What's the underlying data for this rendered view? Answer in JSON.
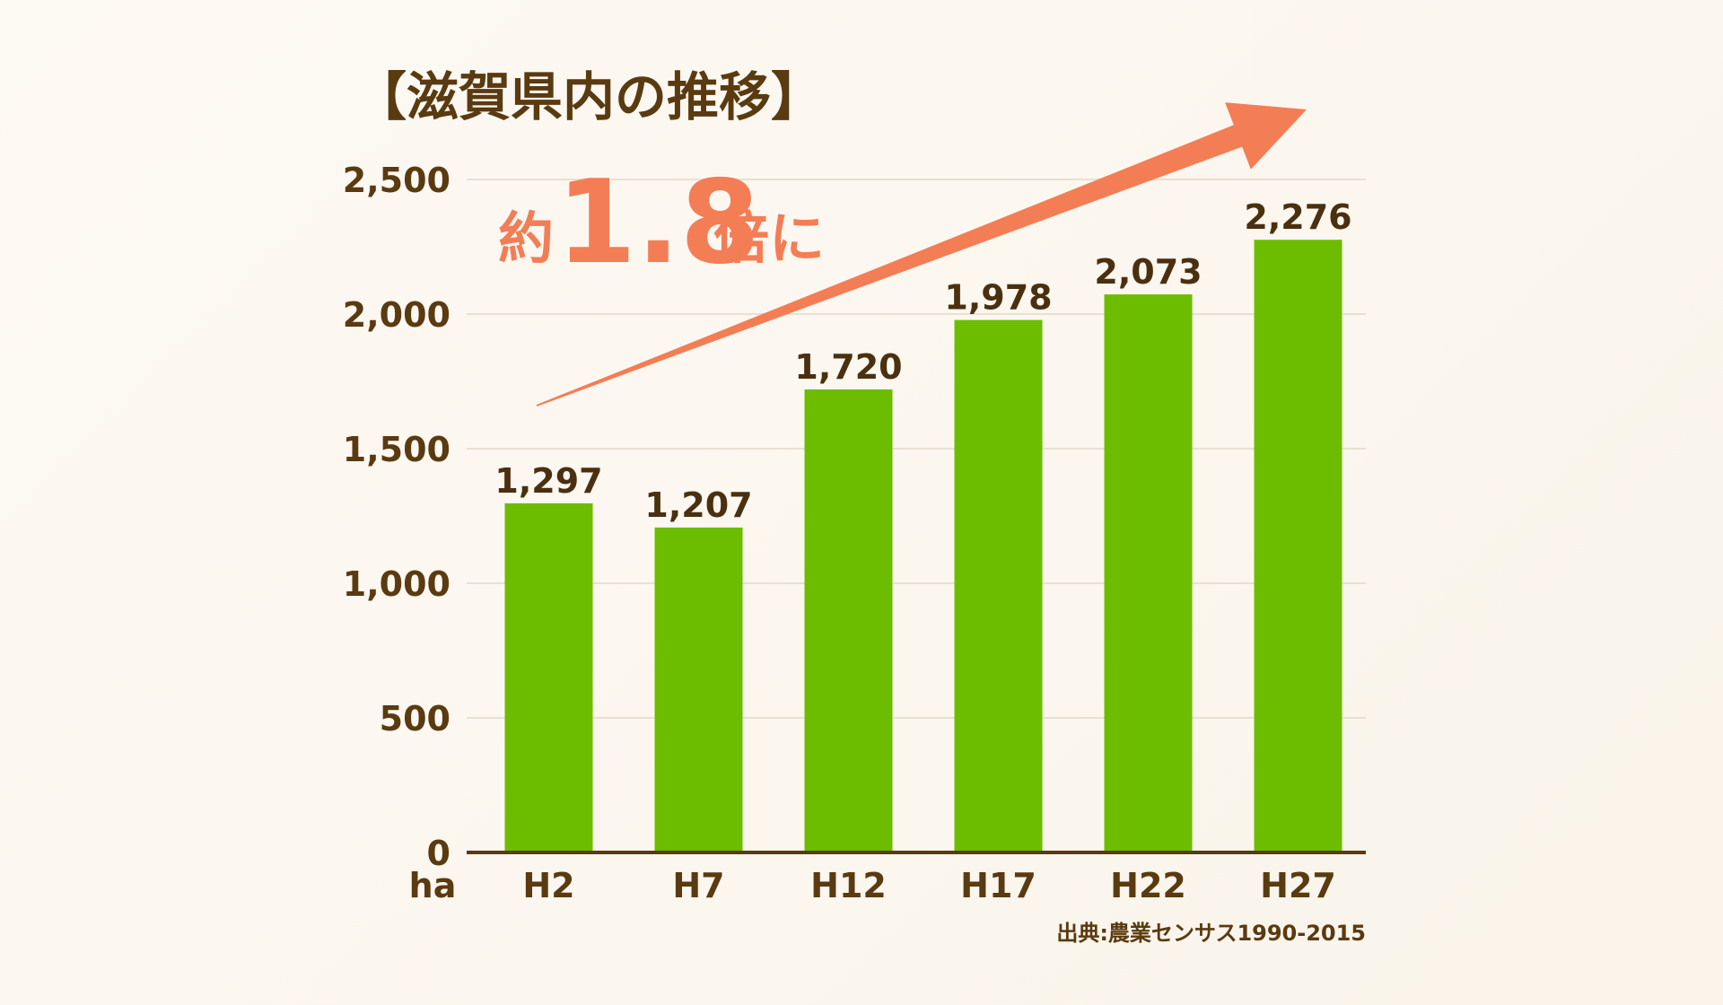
{
  "chart_data": {
    "type": "bar",
    "title": "【滋賀県内の推移】",
    "ylabel": "ha",
    "categories": [
      "H2",
      "H7",
      "H12",
      "H17",
      "H22",
      "H27"
    ],
    "values": [
      1297,
      1207,
      1720,
      1978,
      2073,
      2276
    ],
    "value_labels": [
      "1,297",
      "1,207",
      "1,720",
      "1,978",
      "2,073",
      "2,276"
    ],
    "yticks": [
      0,
      500,
      1000,
      1500,
      2000,
      2500
    ],
    "ytick_labels": [
      "0",
      "500",
      "1,000",
      "1,500",
      "2,000",
      "2,500"
    ],
    "ylim": [
      0,
      2500
    ],
    "grid": true,
    "bar_color": "#6cbd00",
    "annotation": {
      "prefix": "約",
      "number": "1.8",
      "suffix": "倍に",
      "color": "#f37d55",
      "arrow": "rising"
    },
    "source": "出典:農業センサス1990-2015"
  },
  "colors": {
    "text": "#5a3a10",
    "axis": "#5a3a10",
    "grid": "#e8e0d2",
    "background": "#fcf8f1"
  }
}
